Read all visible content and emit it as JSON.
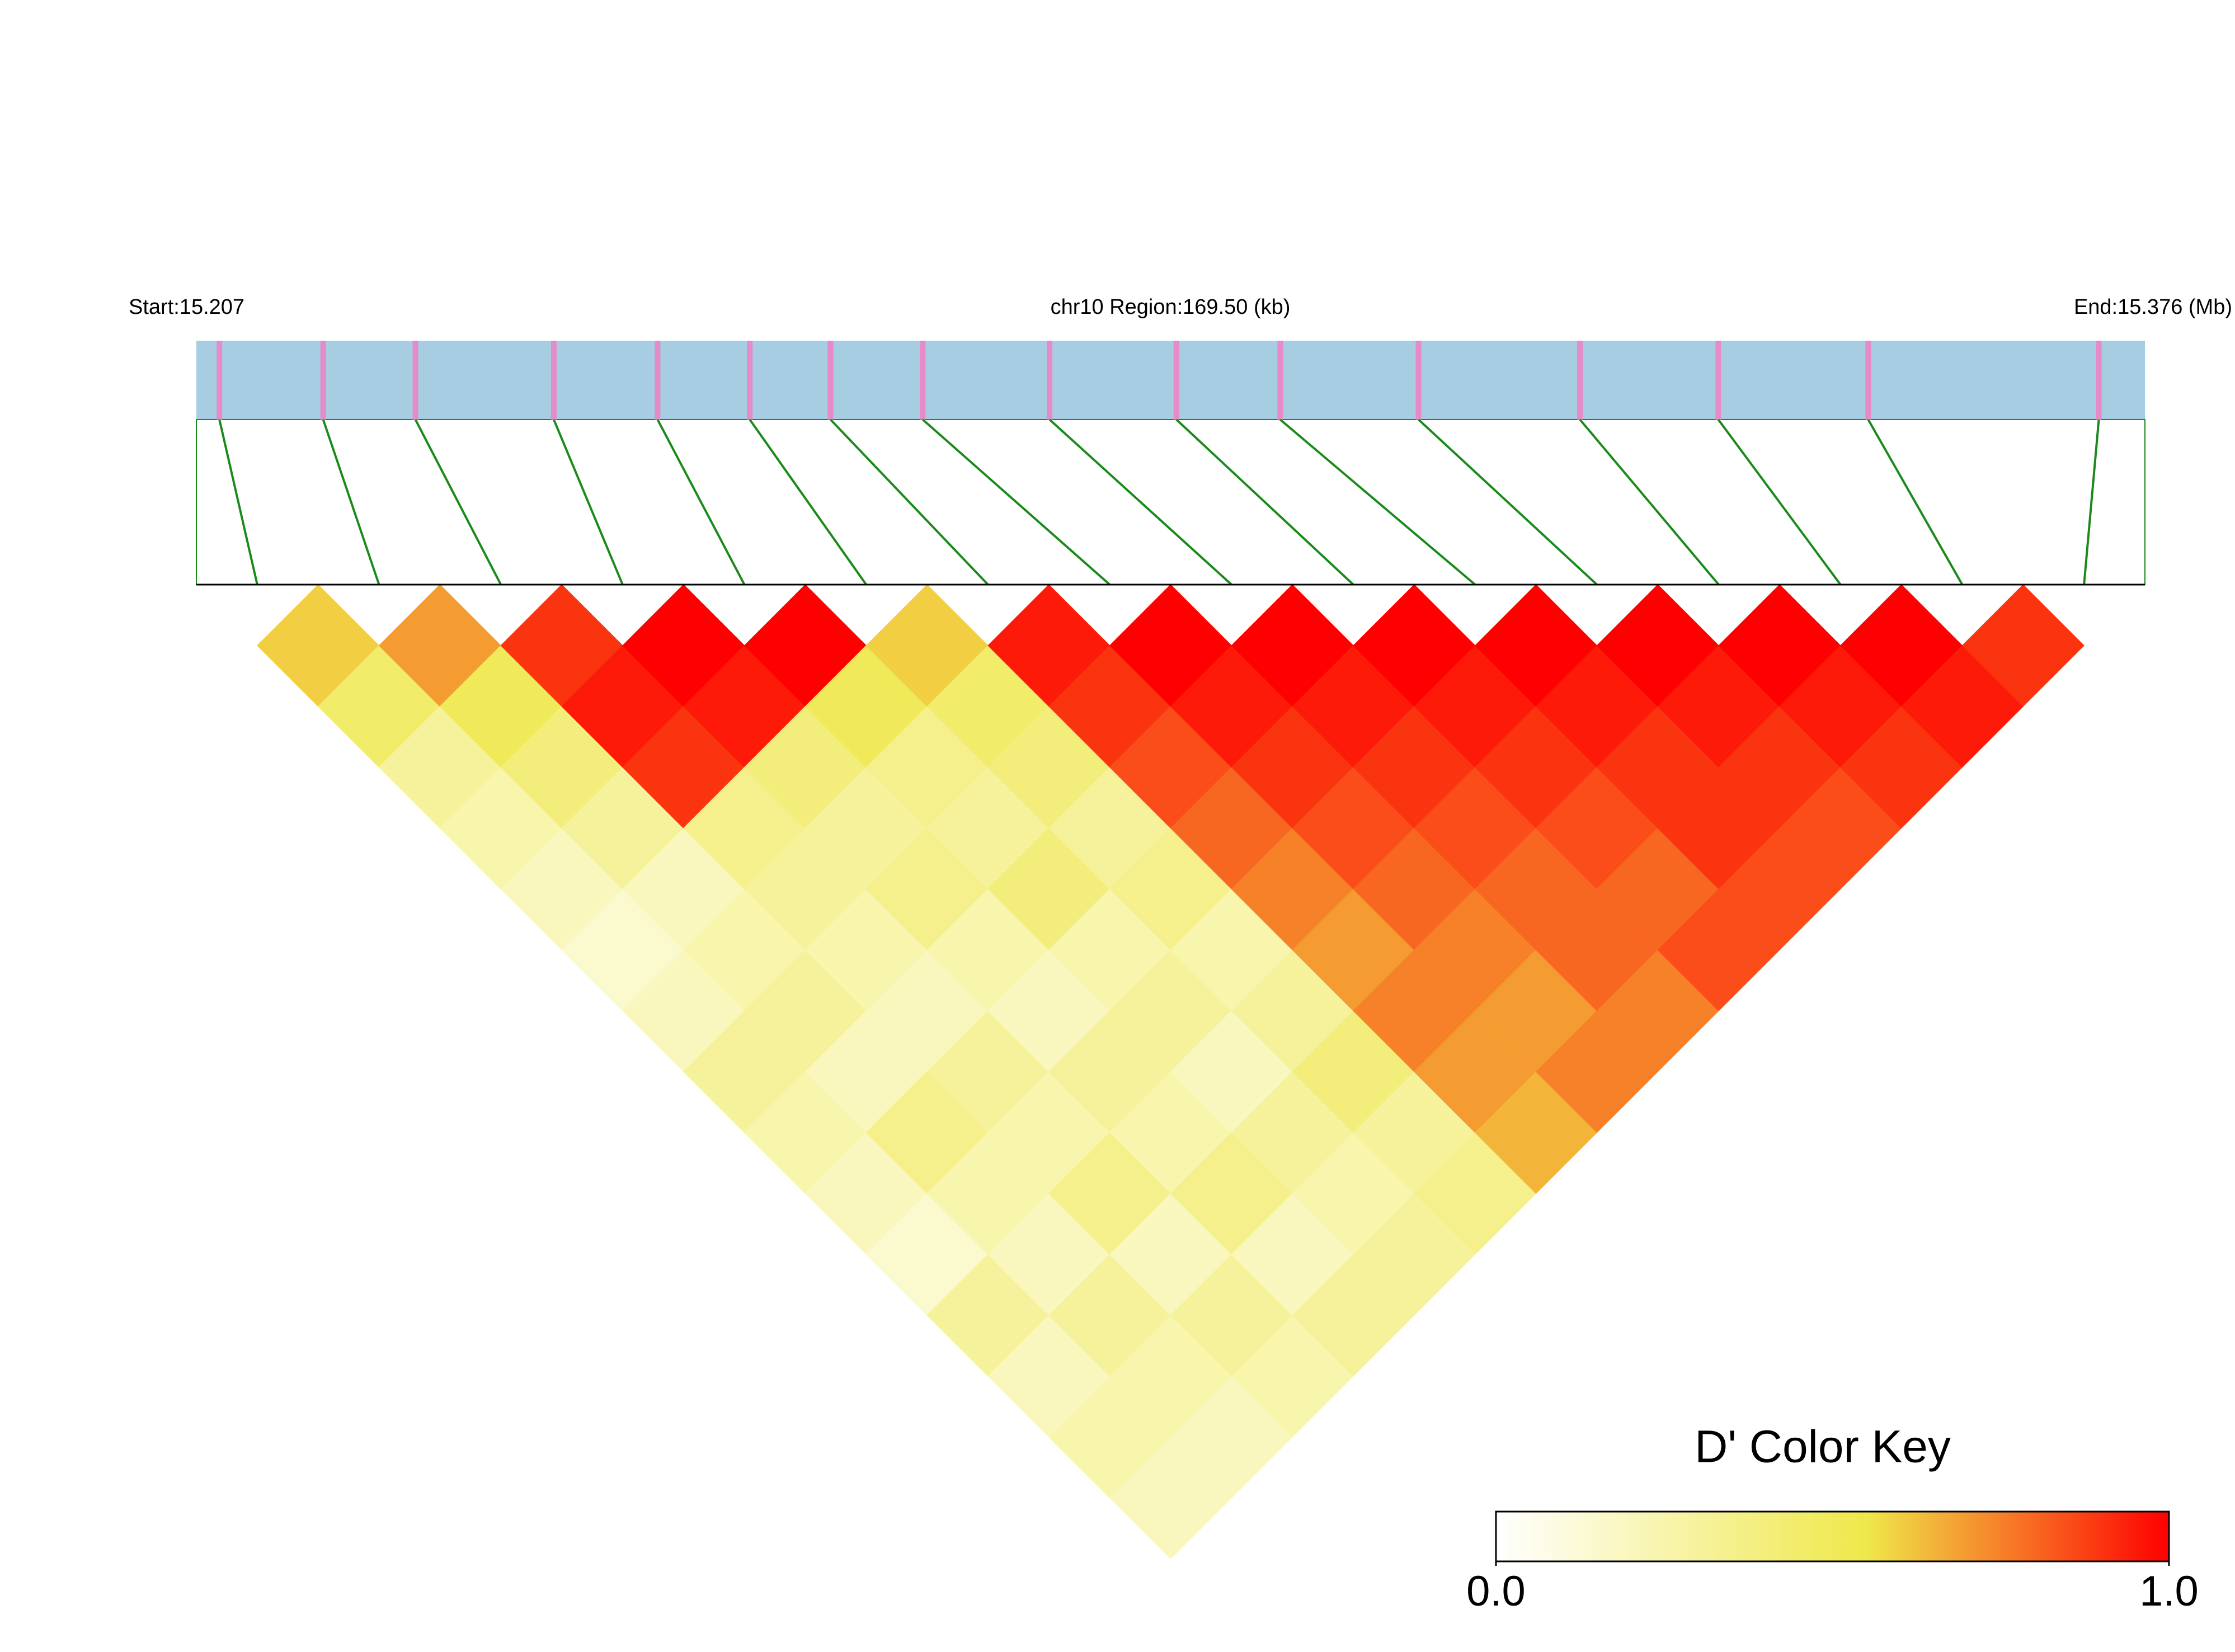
{
  "chart_data": {
    "type": "ld_heatmap",
    "start": {
      "value": 15.207,
      "label": "Start:15.207"
    },
    "region_label": "chr10 Region:169.50 (kb)",
    "end": {
      "value": 15.376,
      "label": "End:15.376 (Mb)"
    },
    "snp_positions": [
      15.209,
      15.218,
      15.226,
      15.238,
      15.247,
      15.255,
      15.262,
      15.27,
      15.281,
      15.292,
      15.301,
      15.313,
      15.327,
      15.339,
      15.352,
      15.372
    ],
    "ld_matrix": [
      [
        0.6,
        0.45,
        0.3,
        0.25,
        0.2,
        0.15,
        0.2,
        0.3,
        0.25,
        0.2,
        0.15,
        0.3,
        0.2,
        0.25,
        0.2
      ],
      [
        0.7,
        0.5,
        0.4,
        0.3,
        0.2,
        0.25,
        0.3,
        0.2,
        0.35,
        0.25,
        0.2,
        0.3,
        0.25,
        0.2
      ],
      [
        0.9,
        0.95,
        0.9,
        0.35,
        0.3,
        0.25,
        0.2,
        0.3,
        0.25,
        0.35,
        0.2,
        0.3,
        0.25
      ],
      [
        1,
        0.95,
        0.4,
        0.3,
        0.35,
        0.25,
        0.2,
        0.3,
        0.25,
        0.35,
        0.2,
        0.3
      ],
      [
        1,
        0.5,
        0.35,
        0.3,
        0.4,
        0.25,
        0.3,
        0.2,
        0.3,
        0.25,
        0.3
      ],
      [
        0.6,
        0.45,
        0.4,
        0.3,
        0.35,
        0.25,
        0.3,
        0.4,
        0.3,
        0.35
      ],
      [
        0.95,
        0.9,
        0.85,
        0.8,
        0.75,
        0.7,
        0.75,
        0.7,
        0.65
      ],
      [
        1,
        0.95,
        0.9,
        0.85,
        0.8,
        0.75,
        0.7,
        0.75
      ],
      [
        1,
        0.95,
        0.9,
        0.85,
        0.8,
        0.8,
        0.75
      ],
      [
        1,
        0.95,
        0.9,
        0.85,
        0.8,
        0.85
      ],
      [
        1,
        0.95,
        0.9,
        0.9,
        0.85
      ],
      [
        1,
        0.95,
        0.9,
        0.85
      ],
      [
        1,
        0.95,
        0.9
      ],
      [
        1,
        0.95
      ],
      [
        0.9
      ]
    ],
    "colorbar": {
      "title": "D' Color Key",
      "range": [
        0,
        1
      ],
      "ticks": [
        {
          "value": 0,
          "label": "0.0"
        },
        {
          "value": 1,
          "label": "1.0"
        }
      ],
      "colorscale": [
        {
          "value": 0,
          "color": "#ffffff"
        },
        {
          "value": 0.55,
          "color": "#efe84a"
        },
        {
          "value": 1,
          "color": "#ff0000"
        }
      ]
    },
    "bar_color": "#a6cde2",
    "snp_color": "#e68ac8",
    "link_color": "#1a8a1a"
  }
}
